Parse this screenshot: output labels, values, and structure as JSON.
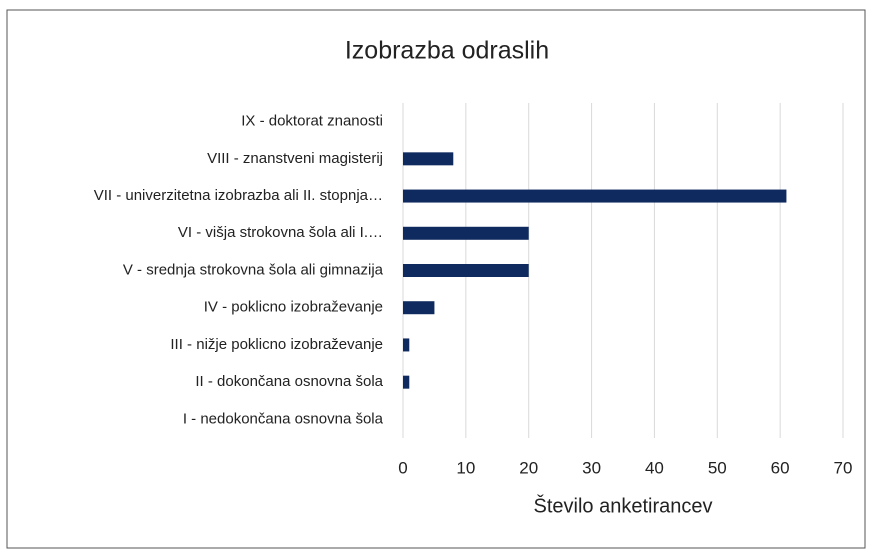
{
  "chart_data": {
    "type": "bar",
    "orientation": "horizontal",
    "title": "Izobrazba odraslih",
    "x_label": "Število anketirancev",
    "categories": [
      "IX - doktorat znanosti",
      "VIII - znanstveni magisterij",
      "VII - univerzitetna izobrazba ali II. stopnja…",
      "VI - višja strokovna šola ali I.…",
      "V - srednja strokovna šola ali gimnazija",
      "IV - poklicno izobraževanje",
      "III - nižje poklicno izobraževanje",
      "II - dokončana osnovna šola",
      "I - nedokončana osnovna šola"
    ],
    "values": [
      0,
      8,
      61,
      20,
      20,
      5,
      1,
      1,
      0
    ],
    "color": "#0f2a5e",
    "xlim": [
      0,
      70
    ],
    "xticks": [
      0,
      10,
      20,
      30,
      40,
      50,
      60,
      70
    ],
    "grid": true
  }
}
